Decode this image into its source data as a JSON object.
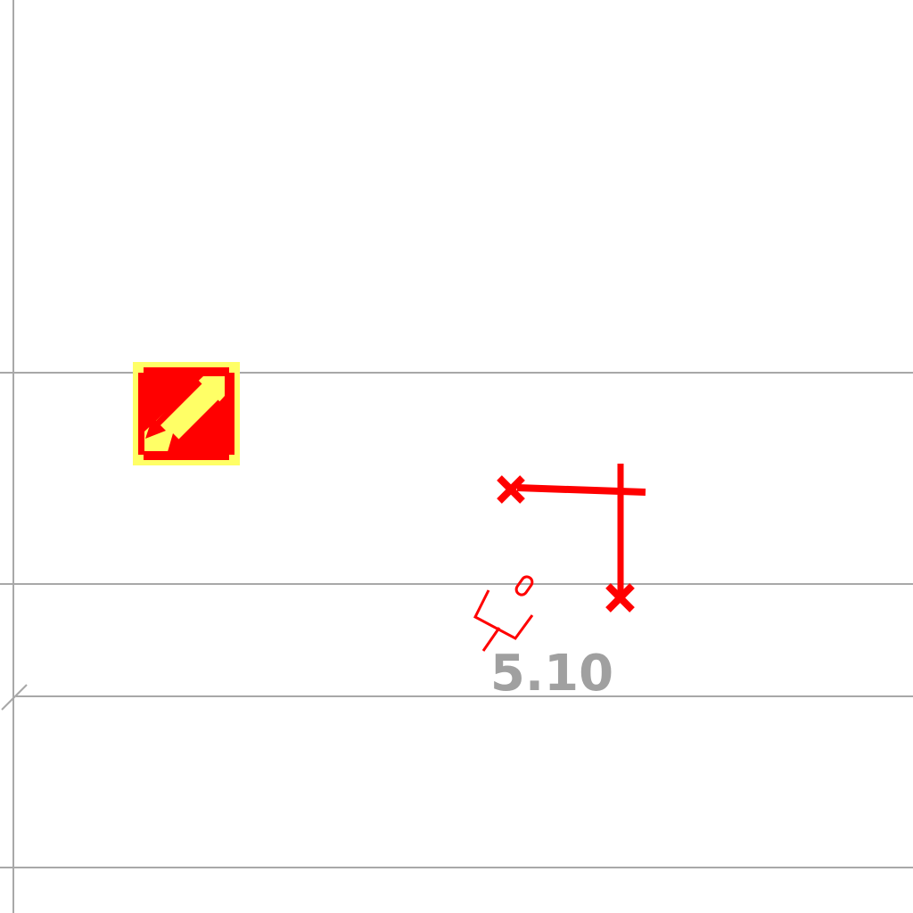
{
  "map": {
    "background": "#ffffff",
    "grid_color": "#a8a8a8",
    "symbol_color": "#ff0000",
    "symbol_fill": "#ffff66",
    "label_color": "#a0a0a0",
    "label": "5.10",
    "icons": {
      "grid_lines": "grid-line",
      "sign": "hazard-sign-icon",
      "track": "red-track-lines",
      "marker": "cross-marker-icon",
      "small": "small-red-symbol"
    }
  }
}
